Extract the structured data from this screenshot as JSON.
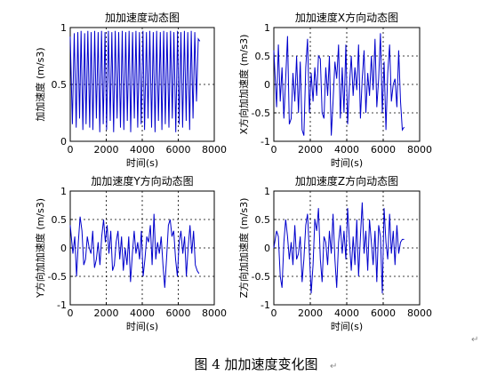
{
  "caption": "图 4  加加速度变化图",
  "paragraph_mark": "↵",
  "line_color": "#0000cc",
  "chart_data": [
    {
      "type": "line",
      "title": "加加速度动态图",
      "xlabel": "时间(s)",
      "ylabel": "加加速度 (m/s3)",
      "xlim": [
        0,
        8000
      ],
      "ylim": [
        0,
        1
      ],
      "xticks": [
        0,
        2000,
        4000,
        6000,
        8000
      ],
      "yticks": [
        0,
        0.5,
        1
      ],
      "ytick_labels": [
        "0",
        "0.5",
        "1"
      ],
      "grid": true,
      "series": [
        {
          "x": [
            0,
            120,
            220,
            330,
            420,
            520,
            600,
            700,
            800,
            880,
            980,
            1080,
            1160,
            1260,
            1360,
            1450,
            1550,
            1640,
            1740,
            1830,
            1930,
            2020,
            2120,
            2220,
            2310,
            2410,
            2500,
            2600,
            2690,
            2790,
            2890,
            2980,
            3080,
            3170,
            3270,
            3360,
            3460,
            3560,
            3650,
            3750,
            3840,
            3940,
            4040,
            4130,
            4230,
            4320,
            4420,
            4520,
            4610,
            4710,
            4800,
            4900,
            5000,
            5090,
            5190,
            5280,
            5380,
            5480,
            5570,
            5670,
            5760,
            5860,
            5960,
            6050,
            6150,
            6240,
            6340,
            6440,
            6530,
            6630,
            6720,
            6820,
            6920,
            7010,
            7110,
            7200
          ],
          "y": [
            0.92,
            0.15,
            0.95,
            0.12,
            0.96,
            0.2,
            0.97,
            0.1,
            0.95,
            0.15,
            0.97,
            0.12,
            0.96,
            0.1,
            0.97,
            0.2,
            0.96,
            0.08,
            0.97,
            0.15,
            0.96,
            0.1,
            0.97,
            0.18,
            0.96,
            0.08,
            0.97,
            0.2,
            0.96,
            0.12,
            0.97,
            0.1,
            0.96,
            0.18,
            0.97,
            0.08,
            0.96,
            0.2,
            0.97,
            0.12,
            0.96,
            0.15,
            0.97,
            0.1,
            0.96,
            0.2,
            0.97,
            0.12,
            0.96,
            0.08,
            0.97,
            0.18,
            0.96,
            0.1,
            0.97,
            0.15,
            0.96,
            0.12,
            0.97,
            0.2,
            0.96,
            0.08,
            0.97,
            0.15,
            0.96,
            0.12,
            0.97,
            0.18,
            0.96,
            0.1,
            0.97,
            0.2,
            0.96,
            0.35,
            0.9,
            0.88
          ]
        }
      ]
    },
    {
      "type": "line",
      "title": "加加速度X方向动态图",
      "xlabel": "时间(s)",
      "ylabel": "X方向加加速度 (m/s3)",
      "xlim": [
        0,
        8000
      ],
      "ylim": [
        -1,
        1
      ],
      "xticks": [
        0,
        2000,
        4000,
        6000,
        8000
      ],
      "yticks": [
        -1,
        -0.5,
        0,
        0.5,
        1
      ],
      "ytick_labels": [
        "-1",
        "-0.5",
        "0",
        "0.5",
        "1"
      ],
      "grid": true,
      "series": [
        {
          "x": [
            0,
            150,
            250,
            350,
            450,
            550,
            650,
            750,
            850,
            950,
            1050,
            1150,
            1250,
            1350,
            1450,
            1550,
            1650,
            1750,
            1850,
            1950,
            2050,
            2150,
            2250,
            2350,
            2450,
            2550,
            2650,
            2750,
            2850,
            2950,
            3050,
            3150,
            3250,
            3350,
            3450,
            3550,
            3650,
            3750,
            3850,
            3950,
            4050,
            4150,
            4250,
            4350,
            4450,
            4550,
            4650,
            4750,
            4850,
            4950,
            5050,
            5150,
            5250,
            5350,
            5450,
            5550,
            5650,
            5750,
            5850,
            5950,
            6050,
            6150,
            6250,
            6350,
            6450,
            6550,
            6650,
            6750,
            6850,
            6950,
            7050,
            7150
          ],
          "y": [
            0.6,
            -0.4,
            0.7,
            -0.3,
            0.3,
            -0.6,
            0.1,
            0.85,
            -0.7,
            -0.6,
            0.2,
            -0.3,
            0.5,
            -0.5,
            0.4,
            -0.8,
            -0.9,
            0.3,
            0.8,
            -0.5,
            0.2,
            -0.3,
            0.3,
            -0.2,
            0.5,
            0.45,
            -0.5,
            -0.6,
            0.3,
            -0.2,
            0.5,
            -0.9,
            -0.3,
            0.4,
            0.1,
            0.7,
            -0.6,
            0.3,
            -0.5,
            0.7,
            -0.7,
            0.0,
            0.5,
            -0.2,
            0.3,
            -0.1,
            0.7,
            -0.6,
            0.1,
            0.6,
            -0.5,
            0.2,
            -0.2,
            0.5,
            -0.1,
            0.8,
            -0.4,
            0.1,
            0.9,
            -0.5,
            0.4,
            -0.8,
            0.2,
            0.7,
            -0.3,
            0.0,
            0.1,
            -0.4,
            0.6,
            -0.3,
            -0.8,
            -0.75
          ]
        }
      ]
    },
    {
      "type": "line",
      "title": "加加速度Y方向动态图",
      "xlabel": "时间(s)",
      "ylabel": "Y方向加加速度 (m/s3)",
      "xlim": [
        0,
        8000
      ],
      "ylim": [
        -1,
        1
      ],
      "xticks": [
        0,
        2000,
        4000,
        6000,
        8000
      ],
      "yticks": [
        -1,
        -0.5,
        0,
        0.5,
        1
      ],
      "ytick_labels": [
        "-1",
        "-0.5",
        "0",
        "0.5",
        "1"
      ],
      "grid": true,
      "series": [
        {
          "x": [
            0,
            150,
            250,
            350,
            450,
            550,
            650,
            750,
            850,
            950,
            1050,
            1150,
            1250,
            1350,
            1450,
            1550,
            1650,
            1750,
            1850,
            1950,
            2050,
            2150,
            2250,
            2350,
            2450,
            2550,
            2650,
            2750,
            2850,
            2950,
            3050,
            3150,
            3250,
            3350,
            3450,
            3550,
            3650,
            3750,
            3850,
            3950,
            4050,
            4150,
            4250,
            4350,
            4450,
            4550,
            4650,
            4750,
            4850,
            4950,
            5050,
            5150,
            5250,
            5350,
            5450,
            5550,
            5650,
            5750,
            5850,
            5950,
            6050,
            6150,
            6250,
            6350,
            6450,
            6550,
            6650,
            6750,
            6850,
            6950,
            7050,
            7150
          ],
          "y": [
            0.4,
            -0.1,
            0.2,
            -0.5,
            0.1,
            0.55,
            0.3,
            -0.3,
            -0.2,
            0.2,
            0.0,
            -0.1,
            0.3,
            -0.35,
            -0.2,
            0.1,
            -0.3,
            0.2,
            0.5,
            0.1,
            0.4,
            -0.1,
            0.3,
            -0.4,
            -0.3,
            0.1,
            0.3,
            -0.2,
            0.2,
            -0.4,
            0.0,
            -0.3,
            0.2,
            -0.6,
            -0.1,
            0.3,
            -0.1,
            0.1,
            -0.2,
            0.3,
            -0.5,
            -0.2,
            0.2,
            0.1,
            0.4,
            -0.3,
            0.6,
            -0.2,
            0.1,
            -0.1,
            0.2,
            -0.3,
            -0.7,
            -0.2,
            0.4,
            0.5,
            0.2,
            0.3,
            -0.2,
            -0.5,
            0.1,
            0.3,
            -0.1,
            0.2,
            -0.5,
            0.0,
            0.4,
            -0.1,
            0.3,
            -0.3,
            -0.4,
            -0.45
          ]
        }
      ]
    },
    {
      "type": "line",
      "title": "加加速度Z方向动态图",
      "xlabel": "时间(s)",
      "ylabel": "Z方向加加速度 (m/s3)",
      "xlim": [
        0,
        8000
      ],
      "ylim": [
        -1,
        1
      ],
      "xticks": [
        0,
        2000,
        4000,
        6000,
        8000
      ],
      "yticks": [
        -1,
        -0.5,
        0,
        0.5,
        1
      ],
      "ytick_labels": [
        "-1",
        "-0.5",
        "0",
        "0.5",
        "1"
      ],
      "grid": true,
      "series": [
        {
          "x": [
            0,
            150,
            250,
            350,
            450,
            550,
            650,
            750,
            850,
            950,
            1050,
            1150,
            1250,
            1350,
            1450,
            1550,
            1650,
            1750,
            1850,
            1950,
            2050,
            2150,
            2250,
            2350,
            2450,
            2550,
            2650,
            2750,
            2850,
            2950,
            3050,
            3150,
            3250,
            3350,
            3450,
            3550,
            3650,
            3750,
            3850,
            3950,
            4050,
            4150,
            4250,
            4350,
            4450,
            4550,
            4650,
            4750,
            4850,
            4950,
            5050,
            5150,
            5250,
            5350,
            5450,
            5550,
            5650,
            5750,
            5850,
            5950,
            6050,
            6150,
            6250,
            6350,
            6450,
            6550,
            6650,
            6750,
            6850,
            6950,
            7050,
            7150
          ],
          "y": [
            0.0,
            0.3,
            0.2,
            -0.5,
            -0.7,
            0.1,
            0.5,
            0.2,
            -0.2,
            0.1,
            -0.3,
            0.4,
            -0.2,
            -0.1,
            0.2,
            -0.6,
            -0.2,
            0.4,
            0.6,
            -0.1,
            -0.8,
            -0.3,
            0.5,
            0.3,
            0.7,
            -0.2,
            -0.6,
            0.2,
            0.1,
            -0.3,
            0.3,
            -0.1,
            0.6,
            -0.2,
            -0.7,
            0.1,
            0.4,
            -0.1,
            0.3,
            -0.2,
            0.7,
            0.1,
            -0.4,
            0.2,
            -0.3,
            0.5,
            -0.5,
            0.2,
            0.8,
            -0.1,
            0.3,
            -0.4,
            0.5,
            0.1,
            -0.3,
            0.3,
            -0.6,
            0.4,
            0.2,
            -0.8,
            0.7,
            0.1,
            -0.2,
            0.6,
            -0.1,
            0.3,
            -0.3,
            0.4,
            -0.1,
            0.1,
            0.15,
            0.15
          ]
        }
      ]
    }
  ]
}
